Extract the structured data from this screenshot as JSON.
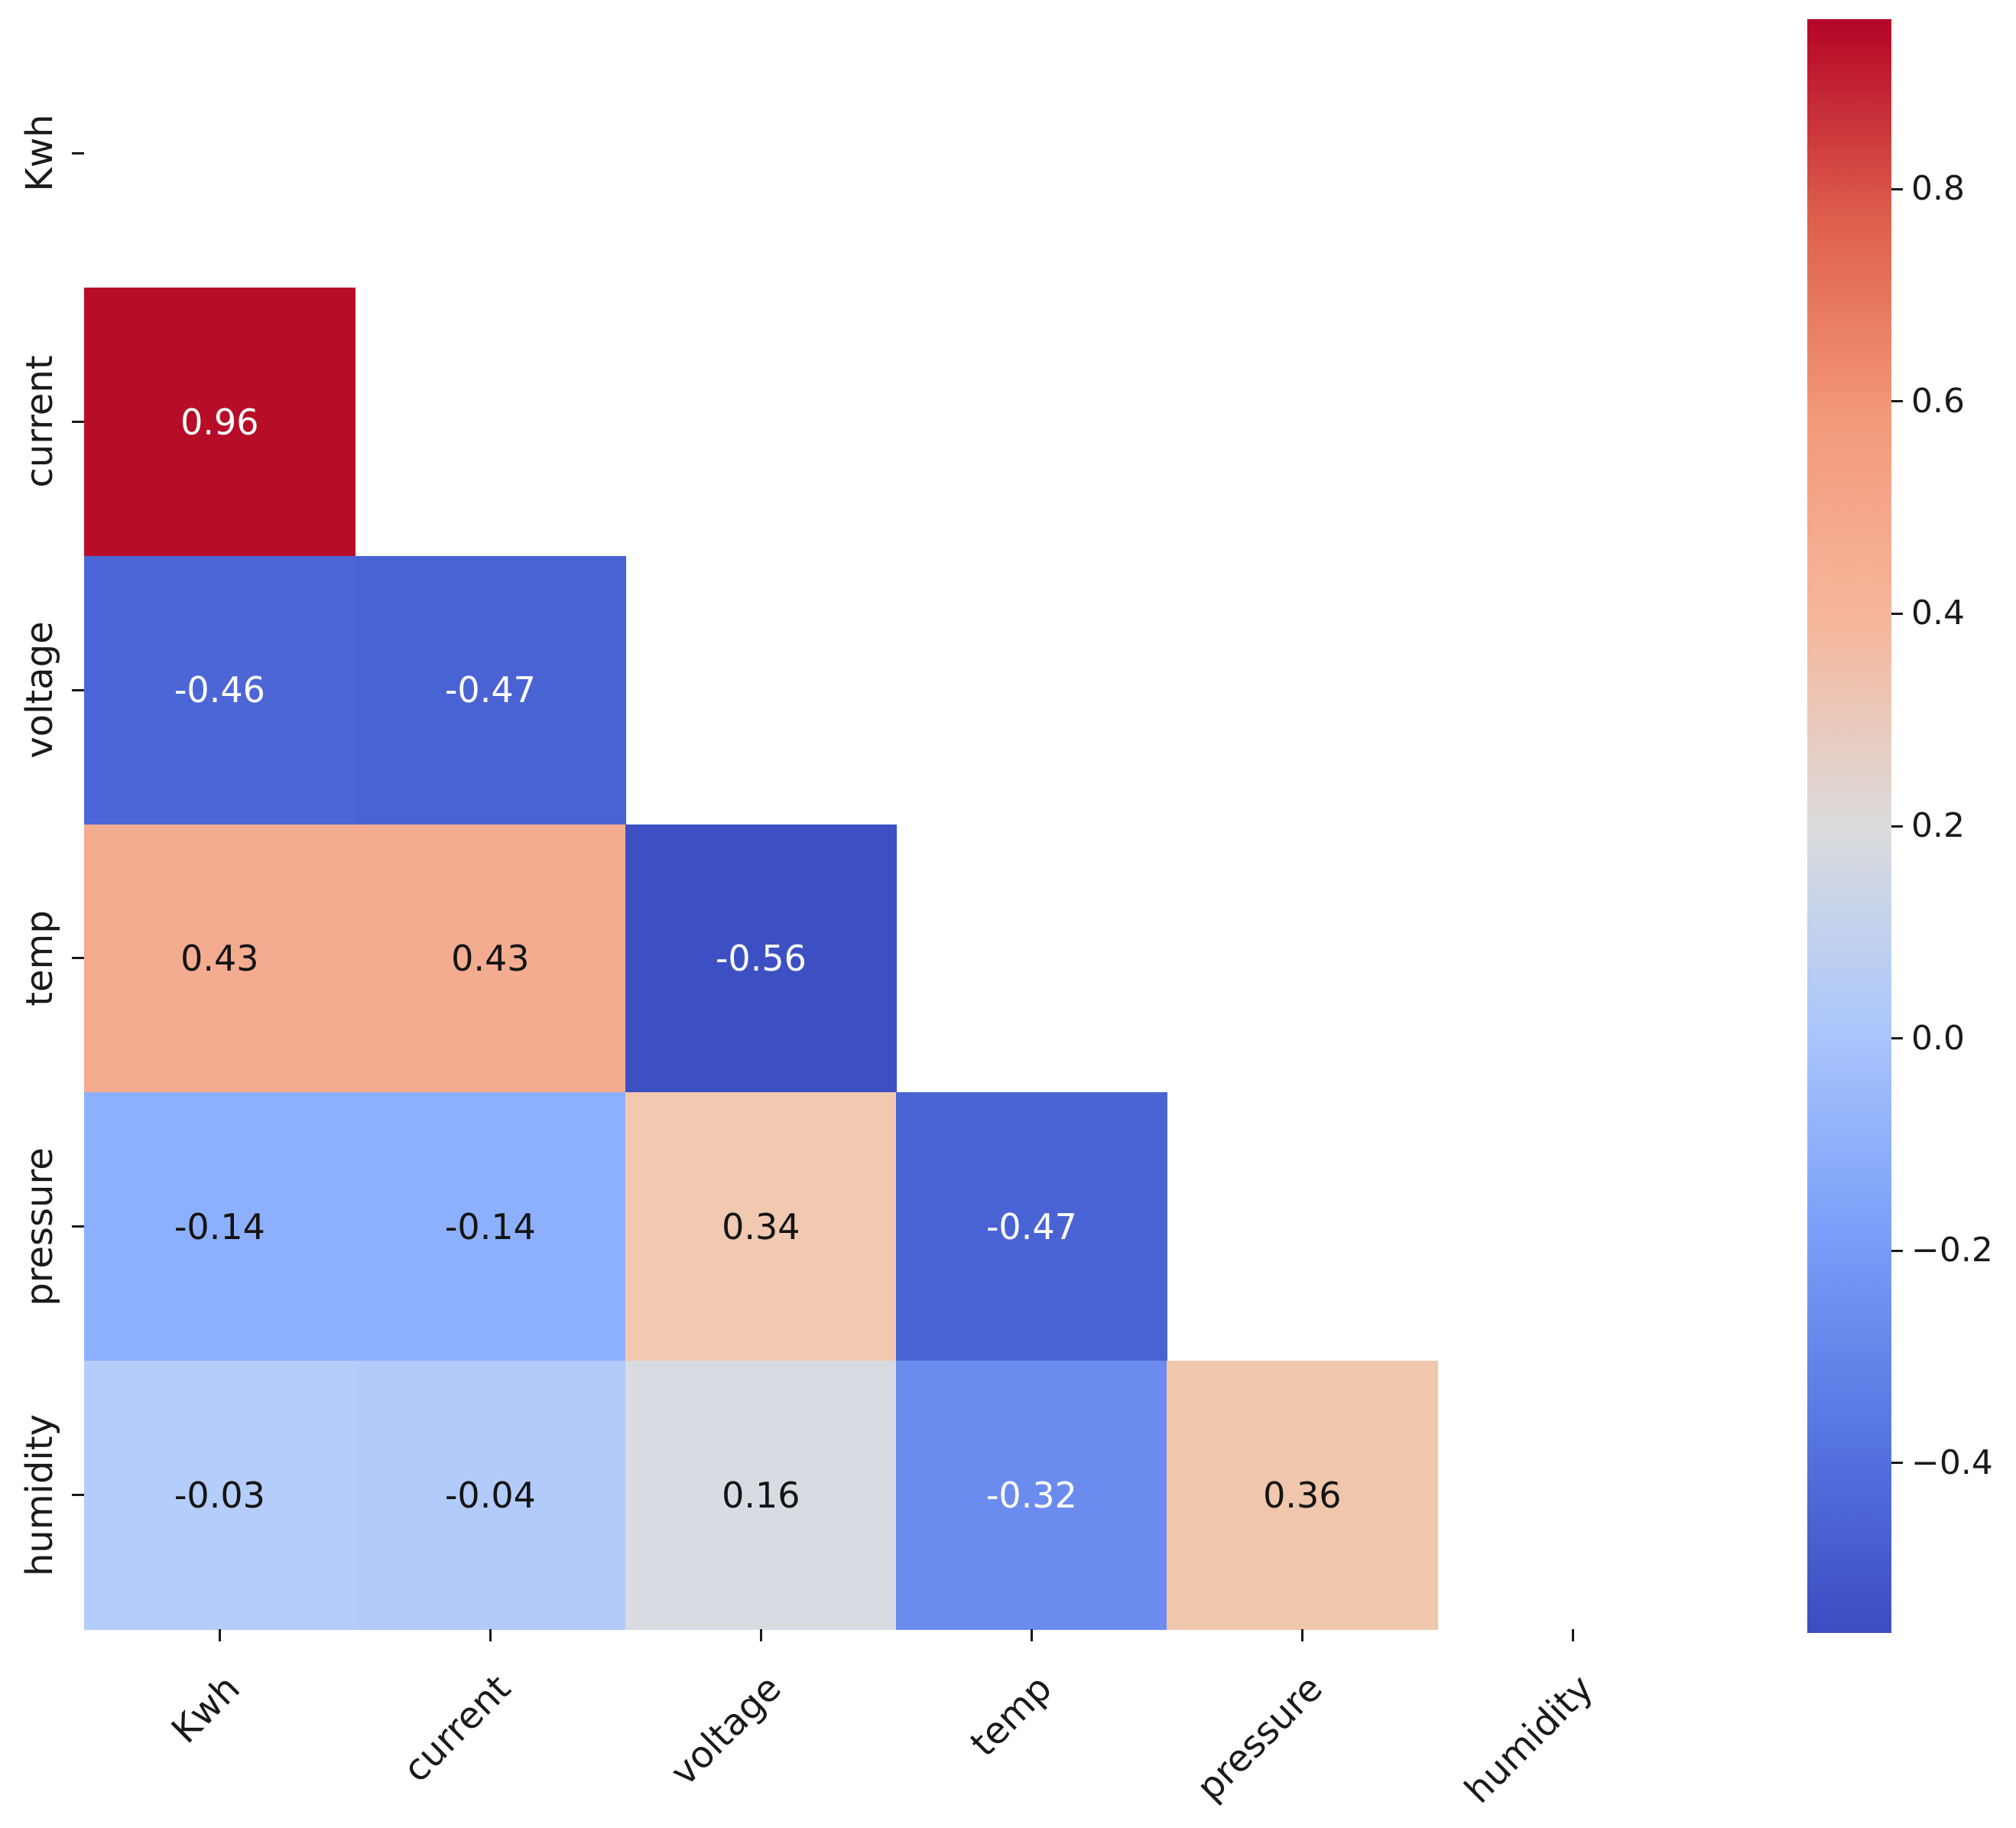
{
  "chart_data": {
    "type": "heatmap",
    "title": "",
    "subtitle": "",
    "colormap": "coolwarm",
    "background": "#ffffff",
    "variables": [
      "Kwh",
      "current",
      "voltage",
      "temp",
      "pressure",
      "humidity"
    ],
    "x_tick_labels": [
      "Kwh",
      "current",
      "voltage",
      "temp",
      "pressure",
      "humidity"
    ],
    "y_tick_labels": [
      "Kwh",
      "current",
      "voltage",
      "temp",
      "pressure",
      "humidity"
    ],
    "mask": "upper triangle including diagonal hidden",
    "matrix_lower_triangle": [
      [
        null,
        null,
        null,
        null,
        null,
        null
      ],
      [
        0.96,
        null,
        null,
        null,
        null,
        null
      ],
      [
        -0.46,
        -0.47,
        null,
        null,
        null,
        null
      ],
      [
        0.43,
        0.43,
        -0.56,
        null,
        null,
        null
      ],
      [
        -0.14,
        -0.14,
        0.34,
        -0.47,
        null,
        null
      ],
      [
        -0.03,
        -0.04,
        0.16,
        -0.32,
        0.36,
        null
      ]
    ],
    "cells": [
      {
        "row": 1,
        "col": 0,
        "label": "0.96",
        "bg": "#b70d28",
        "fg": "#ffffff"
      },
      {
        "row": 2,
        "col": 0,
        "label": "-0.46",
        "bg": "#4c66d6",
        "fg": "#ffffff"
      },
      {
        "row": 2,
        "col": 1,
        "label": "-0.47",
        "bg": "#4a63d4",
        "fg": "#ffffff"
      },
      {
        "row": 3,
        "col": 0,
        "label": "0.43",
        "bg": "#f4ac90",
        "fg": "#141414"
      },
      {
        "row": 3,
        "col": 1,
        "label": "0.43",
        "bg": "#f4ac90",
        "fg": "#141414"
      },
      {
        "row": 3,
        "col": 2,
        "label": "-0.56",
        "bg": "#3c50c4",
        "fg": "#ffffff"
      },
      {
        "row": 4,
        "col": 0,
        "label": "-0.14",
        "bg": "#8db0fe",
        "fg": "#141414"
      },
      {
        "row": 4,
        "col": 1,
        "label": "-0.14",
        "bg": "#8db0fe",
        "fg": "#141414"
      },
      {
        "row": 4,
        "col": 2,
        "label": "0.34",
        "bg": "#f1c9b1",
        "fg": "#141414"
      },
      {
        "row": 4,
        "col": 3,
        "label": "-0.47",
        "bg": "#4a63d4",
        "fg": "#ffffff"
      },
      {
        "row": 5,
        "col": 0,
        "label": "-0.03",
        "bg": "#b5cdfa",
        "fg": "#141414"
      },
      {
        "row": 5,
        "col": 1,
        "label": "-0.04",
        "bg": "#b2cbfb",
        "fg": "#141414"
      },
      {
        "row": 5,
        "col": 2,
        "label": "0.16",
        "bg": "#d8dce2",
        "fg": "#141414"
      },
      {
        "row": 5,
        "col": 3,
        "label": "-0.32",
        "bg": "#6b8cee",
        "fg": "#ffffff"
      },
      {
        "row": 5,
        "col": 4,
        "label": "0.36",
        "bg": "#f0c6ac",
        "fg": "#141414"
      }
    ],
    "colorbar": {
      "vmin": -0.56,
      "vmax": 0.96,
      "tick_labels": [
        "0.8",
        "0.6",
        "0.4",
        "0.2",
        "0.0",
        "−0.2",
        "−0.4"
      ],
      "tick_values": [
        0.8,
        0.6,
        0.4,
        0.2,
        0.0,
        -0.2,
        -0.4
      ],
      "gradient_stops": [
        {
          "pos": 0,
          "color": "#b40426"
        },
        {
          "pos": 12.5,
          "color": "#de604d"
        },
        {
          "pos": 25,
          "color": "#f49a7b"
        },
        {
          "pos": 37.5,
          "color": "#f6b79c"
        },
        {
          "pos": 50,
          "color": "#dcdcdc"
        },
        {
          "pos": 62.5,
          "color": "#abc7fc"
        },
        {
          "pos": 75,
          "color": "#7b9ff9"
        },
        {
          "pos": 87.5,
          "color": "#5876e2"
        },
        {
          "pos": 100,
          "color": "#3b4cc0"
        }
      ]
    }
  }
}
